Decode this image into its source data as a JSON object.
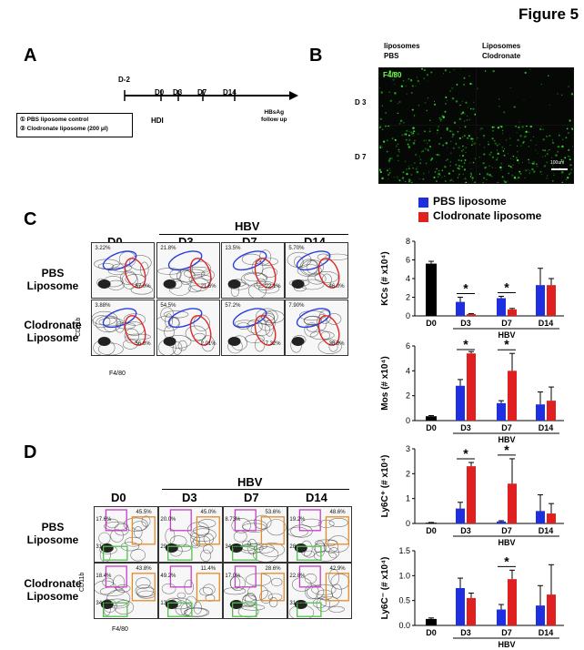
{
  "figure_title": "Figure 5",
  "panels": {
    "A": {
      "letter": "A",
      "timepoints": [
        "D-2",
        "D0",
        "D3",
        "D7",
        "D14"
      ],
      "hdi": "HDI",
      "follow": [
        "HBsAg",
        "follow up"
      ],
      "legend_lines": [
        "① PBS liposome control",
        "② Clodronate liposome (200 μl)"
      ]
    },
    "B": {
      "letter": "B",
      "col1": [
        "liposomes",
        "PBS"
      ],
      "col2": [
        "Liposomes",
        "Clodronate"
      ],
      "stain": "F4/80",
      "rows": [
        "D 3",
        "D 7"
      ],
      "scalebar": "100um"
    },
    "C": {
      "letter": "C",
      "hbv": "HBV",
      "cols": [
        "D0",
        "D3",
        "D7",
        "D14"
      ],
      "rows": [
        [
          "PBS",
          "Liposome"
        ],
        [
          "Clodronate",
          "Liposome"
        ]
      ],
      "y_axis": "CD11b",
      "x_axis": "F4/80",
      "blue_pcts": [
        [
          "3.22%",
          "21.8%",
          "13.5%",
          "5.70%"
        ],
        [
          "3.88%",
          "54.5%",
          "57.2%",
          "7.90%"
        ]
      ],
      "red_pcts": [
        [
          "57.0%",
          "21.6%",
          "22.1%",
          "46.0%"
        ],
        [
          "56.8%",
          "2.01%",
          "7.32%",
          "38.8%"
        ]
      ]
    },
    "D": {
      "letter": "D",
      "hbv": "HBV",
      "cols": [
        "D0",
        "D3",
        "D7",
        "D14"
      ],
      "rows": [
        [
          "PBS",
          "Liposome"
        ],
        [
          "Clodronate",
          "Liposome"
        ]
      ],
      "y_axis": "CD11b",
      "x_axis": "F4/80",
      "magenta_pcts": [
        [
          "17.6%",
          "20.0%",
          "8.73%",
          "19.2%"
        ],
        [
          "18.4%",
          "49.2%",
          "17.0%",
          "22.8%"
        ]
      ],
      "orange_pcts": [
        [
          "45.5%",
          "45.0%",
          "53.6%",
          "48.6%"
        ],
        [
          "43.8%",
          "11.4%",
          "28.6%",
          "42.9%"
        ]
      ],
      "green_pcts": [
        [
          "31",
          "29.",
          "34.8%",
          "28."
        ],
        [
          "34.8%",
          "13",
          "",
          "31.8%"
        ]
      ]
    }
  },
  "legend": {
    "pbs": "PBS liposome",
    "clod": "Clodronate liposome",
    "pbs_color": "#1f2fe0",
    "clod_color": "#e02020",
    "d0_color": "#000000"
  },
  "chart_data": [
    {
      "type": "bar",
      "ylabel": "KCs (# x10⁴)",
      "xgroup_label": "HBV",
      "ylim": [
        0,
        8
      ],
      "yticks": [
        0,
        2,
        4,
        6,
        8
      ],
      "categories": [
        "D0",
        "D3",
        "D7",
        "D14"
      ],
      "d0_value": 5.6,
      "d0_err": 0.25,
      "series": [
        {
          "name": "PBS liposome",
          "values": [
            null,
            1.5,
            1.9,
            3.3
          ],
          "errors": [
            null,
            0.5,
            0.2,
            1.8
          ]
        },
        {
          "name": "Clodronate liposome",
          "values": [
            null,
            0.2,
            0.7,
            3.3
          ],
          "errors": [
            null,
            0.05,
            0.1,
            0.7
          ]
        }
      ],
      "significance": [
        {
          "group": 1,
          "label": "*"
        },
        {
          "group": 2,
          "label": "*"
        }
      ]
    },
    {
      "type": "bar",
      "ylabel": "Mos (# x10⁴)",
      "xgroup_label": "HBV",
      "ylim": [
        0,
        6
      ],
      "yticks": [
        0,
        2,
        4,
        6
      ],
      "categories": [
        "D0",
        "D3",
        "D7",
        "D14"
      ],
      "d0_value": 0.35,
      "d0_err": 0.05,
      "series": [
        {
          "name": "PBS liposome",
          "values": [
            null,
            2.8,
            1.4,
            1.3
          ],
          "errors": [
            null,
            0.5,
            0.2,
            1.0
          ]
        },
        {
          "name": "Clodronate liposome",
          "values": [
            null,
            5.4,
            4.0,
            1.6
          ],
          "errors": [
            null,
            0.15,
            1.4,
            1.1
          ]
        }
      ],
      "significance": [
        {
          "group": 1,
          "label": "*"
        },
        {
          "group": 2,
          "label": "*"
        }
      ]
    },
    {
      "type": "bar",
      "ylabel": "Ly6C⁺ (# x10⁴)",
      "xgroup_label": "HBV",
      "ylim": [
        0,
        3
      ],
      "yticks": [
        0,
        1,
        2,
        3
      ],
      "categories": [
        "D0",
        "D3",
        "D7",
        "D14"
      ],
      "d0_value": 0.03,
      "d0_err": 0.01,
      "series": [
        {
          "name": "PBS liposome",
          "values": [
            null,
            0.6,
            0.08,
            0.5
          ],
          "errors": [
            null,
            0.25,
            0.03,
            0.65
          ]
        },
        {
          "name": "Clodronate liposome",
          "values": [
            null,
            2.3,
            1.6,
            0.4
          ],
          "errors": [
            null,
            0.15,
            1.0,
            0.4
          ]
        }
      ],
      "significance": [
        {
          "group": 1,
          "label": "*"
        },
        {
          "group": 2,
          "label": "*"
        }
      ]
    },
    {
      "type": "bar",
      "ylabel": "Ly6C⁻ (# x10⁴)",
      "xgroup_label": "HBV",
      "ylim": [
        0,
        1.5
      ],
      "yticks": [
        0.0,
        0.5,
        1.0,
        1.5
      ],
      "categories": [
        "D0",
        "D3",
        "D7",
        "D14"
      ],
      "d0_value": 0.13,
      "d0_err": 0.02,
      "series": [
        {
          "name": "PBS liposome",
          "values": [
            null,
            0.75,
            0.32,
            0.4
          ],
          "errors": [
            null,
            0.2,
            0.1,
            0.4
          ]
        },
        {
          "name": "Clodronate liposome",
          "values": [
            null,
            0.55,
            0.93,
            0.62
          ],
          "errors": [
            null,
            0.1,
            0.18,
            0.6
          ]
        }
      ],
      "significance": [
        {
          "group": 2,
          "label": "*"
        }
      ]
    }
  ]
}
